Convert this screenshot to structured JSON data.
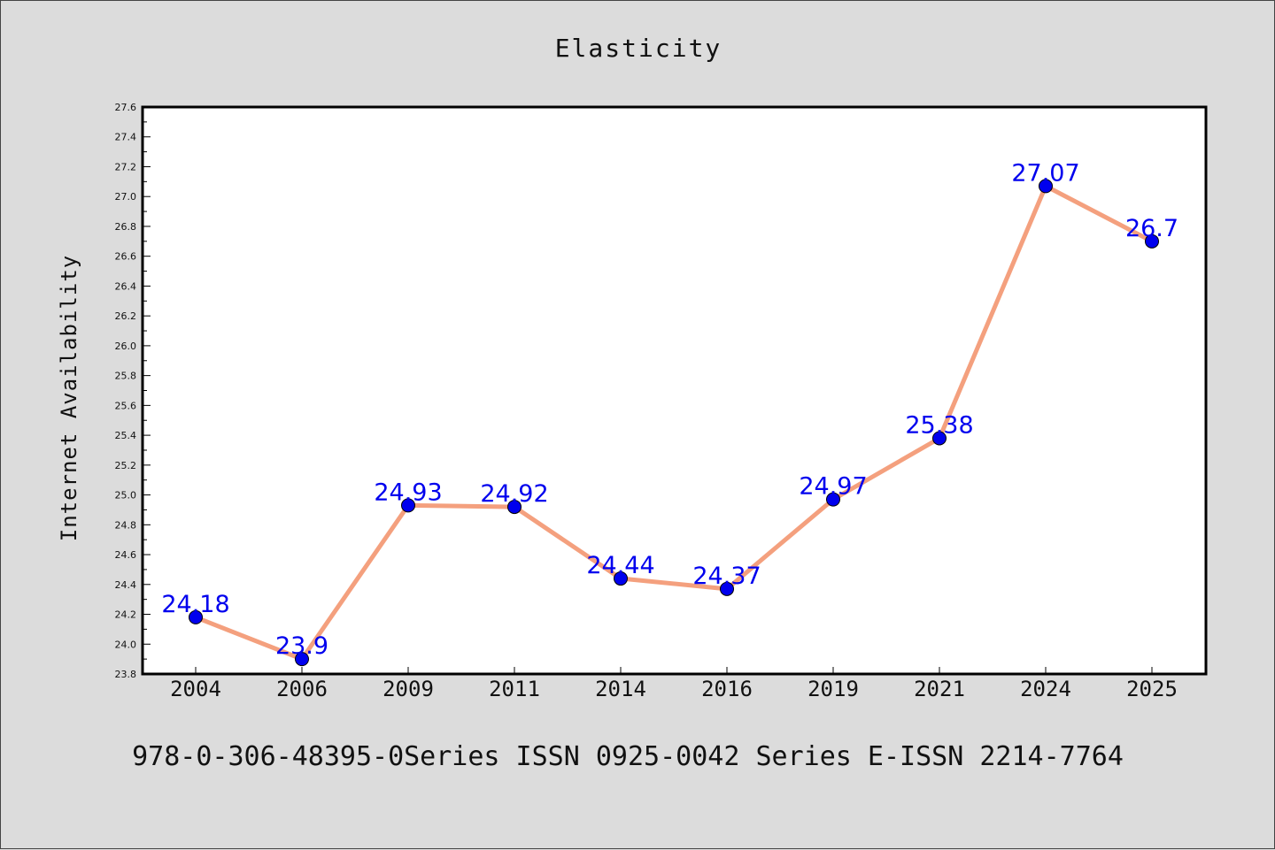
{
  "chart_data": {
    "type": "line",
    "title": "Elasticity",
    "xlabel": "",
    "ylabel": "Internet Availability",
    "categories": [
      "2004",
      "2006",
      "2009",
      "2011",
      "2014",
      "2016",
      "2019",
      "2021",
      "2024",
      "2025"
    ],
    "series": [
      {
        "values": [
          24.18,
          23.9,
          24.93,
          24.92,
          24.44,
          24.37,
          24.97,
          25.38,
          27.07,
          26.7
        ],
        "data_labels": [
          "24.18",
          "23.9",
          "24.93",
          "24.92",
          "24.44",
          "24.37",
          "24.97",
          "25.38",
          "27.07",
          "26.7"
        ]
      }
    ],
    "ylim": [
      23.8,
      27.6
    ],
    "yticks": [
      "23.8",
      "24.0",
      "24.2",
      "24.4",
      "24.6",
      "24.8",
      "25.0",
      "25.2",
      "25.4",
      "25.6",
      "25.8",
      "26.0",
      "26.2",
      "26.4",
      "26.6",
      "26.8",
      "27.0",
      "27.2",
      "27.4",
      "27.6"
    ],
    "grid": false,
    "colors": {
      "line": "#f4a07e",
      "marker": "#0000ee",
      "data_label": "#0000ee",
      "background": "#dcdcdc",
      "plot_background": "#ffffff"
    }
  },
  "caption": "978-0-306-48395-0Series ISSN 0925-0042 Series E-ISSN 2214-7764"
}
